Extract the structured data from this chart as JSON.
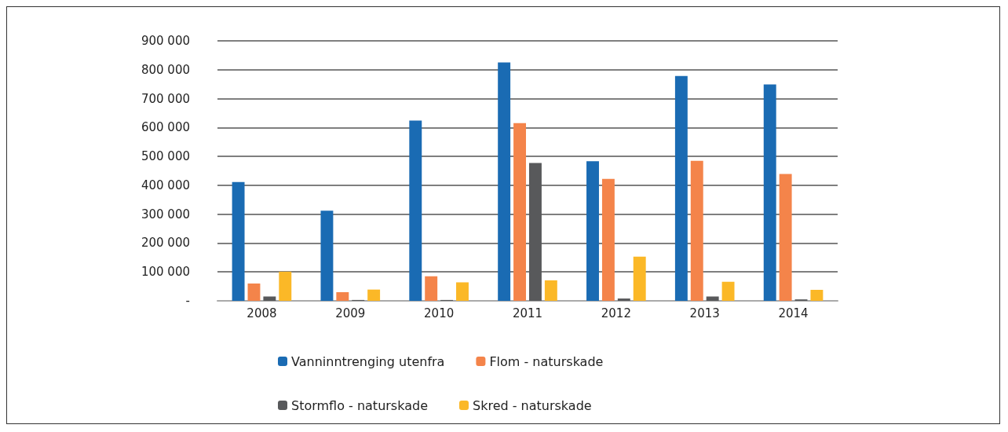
{
  "chart_data": {
    "type": "bar",
    "categories": [
      "2008",
      "2009",
      "2010",
      "2011",
      "2012",
      "2013",
      "2014"
    ],
    "series": [
      {
        "name": "Vanninntrenging utenfra",
        "color": "#1a6bb3",
        "values": [
          411000,
          312000,
          624000,
          825000,
          483000,
          778000,
          749000
        ]
      },
      {
        "name": "Flom - naturskade",
        "color": "#f4844a",
        "values": [
          60000,
          30000,
          85000,
          615000,
          422000,
          485000,
          439000
        ]
      },
      {
        "name": "Stormflo - naturskade",
        "color": "#58595b",
        "values": [
          15000,
          3000,
          3000,
          477000,
          8000,
          15000,
          5000
        ]
      },
      {
        "name": "Skred - naturskade",
        "color": "#fbb827",
        "values": [
          101000,
          39000,
          64000,
          71000,
          153000,
          66000,
          38000
        ]
      }
    ],
    "ylim": [
      0,
      900000
    ],
    "yticks": [
      {
        "value": 0,
        "label": "-"
      },
      {
        "value": 100000,
        "label": "100 000"
      },
      {
        "value": 200000,
        "label": "200 000"
      },
      {
        "value": 300000,
        "label": "300 000"
      },
      {
        "value": 400000,
        "label": "400 000"
      },
      {
        "value": 500000,
        "label": "500 000"
      },
      {
        "value": 600000,
        "label": "600 000"
      },
      {
        "value": 700000,
        "label": "700 000"
      },
      {
        "value": 800000,
        "label": "800 000"
      },
      {
        "value": 900000,
        "label": "900 000"
      }
    ],
    "grid": "y",
    "legend": "bottom"
  }
}
